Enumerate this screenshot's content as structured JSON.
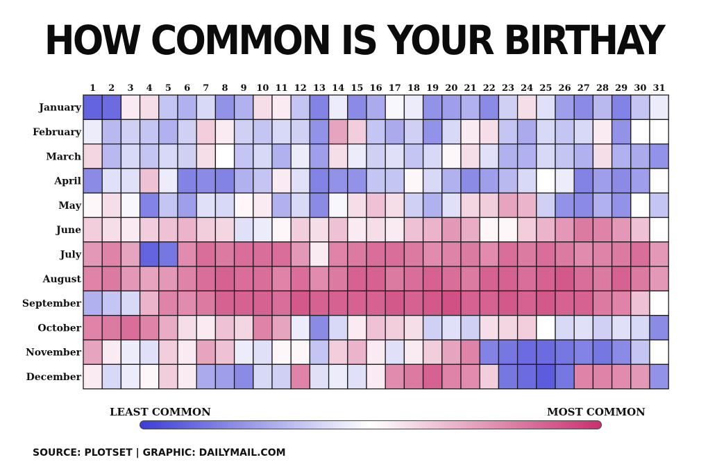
{
  "title": "HOW COMMON IS YOUR BIRTHAY",
  "legend": {
    "low_label": "LEAST COMMON",
    "high_label": "MOST COMMON",
    "colors": [
      "#3d3dd6",
      "#ffffff",
      "#c9306e"
    ]
  },
  "source": "SOURCE: PLOTSET | GRAPHIC: DAILYMAIL.COM",
  "chart_data": {
    "type": "heatmap",
    "scale": "relative birthday frequency, 0 = least common, 1 = most common",
    "x_labels": [
      "1",
      "2",
      "3",
      "4",
      "5",
      "6",
      "7",
      "8",
      "9",
      "10",
      "11",
      "12",
      "13",
      "14",
      "15",
      "16",
      "17",
      "18",
      "19",
      "20",
      "21",
      "22",
      "23",
      "24",
      "25",
      "26",
      "27",
      "28",
      "29",
      "30",
      "31"
    ],
    "y_labels": [
      "January",
      "February",
      "March",
      "April",
      "May",
      "June",
      "July",
      "August",
      "September",
      "October",
      "November",
      "December"
    ],
    "values": [
      [
        0.1,
        0.12,
        0.55,
        0.58,
        0.35,
        0.3,
        0.4,
        0.22,
        0.3,
        0.58,
        0.55,
        0.35,
        0.18,
        0.45,
        0.2,
        0.28,
        0.48,
        0.45,
        0.22,
        0.25,
        0.3,
        0.2,
        0.38,
        0.58,
        0.42,
        0.25,
        0.2,
        0.32,
        0.18,
        0.35,
        0.45
      ],
      [
        0.45,
        0.32,
        0.38,
        0.35,
        0.3,
        0.38,
        0.62,
        0.55,
        0.38,
        0.35,
        0.4,
        0.38,
        0.22,
        0.72,
        0.62,
        0.35,
        0.28,
        0.38,
        0.22,
        0.4,
        0.55,
        0.58,
        0.35,
        0.28,
        0.4,
        0.35,
        0.4,
        0.55,
        0.22,
        0.5,
        0.5
      ],
      [
        0.6,
        0.32,
        0.4,
        0.35,
        0.4,
        0.38,
        0.58,
        0.5,
        0.35,
        0.4,
        0.3,
        0.45,
        0.25,
        0.58,
        0.45,
        0.38,
        0.42,
        0.35,
        0.4,
        0.52,
        0.58,
        0.42,
        0.3,
        0.3,
        0.4,
        0.35,
        0.3,
        0.58,
        0.3,
        0.28,
        0.22
      ],
      [
        0.2,
        0.42,
        0.42,
        0.65,
        0.45,
        0.18,
        0.2,
        0.18,
        0.3,
        0.35,
        0.55,
        0.42,
        0.18,
        0.22,
        0.22,
        0.35,
        0.35,
        0.52,
        0.4,
        0.3,
        0.2,
        0.25,
        0.32,
        0.4,
        0.5,
        0.45,
        0.18,
        0.25,
        0.2,
        0.25,
        0.5
      ],
      [
        0.52,
        0.58,
        0.48,
        0.18,
        0.35,
        0.25,
        0.42,
        0.4,
        0.52,
        0.55,
        0.3,
        0.4,
        0.2,
        0.48,
        0.58,
        0.65,
        0.58,
        0.38,
        0.3,
        0.42,
        0.6,
        0.62,
        0.72,
        0.68,
        0.38,
        0.22,
        0.2,
        0.3,
        0.22,
        0.5,
        0.35
      ],
      [
        0.62,
        0.58,
        0.55,
        0.62,
        0.65,
        0.68,
        0.62,
        0.6,
        0.42,
        0.45,
        0.52,
        0.62,
        0.58,
        0.65,
        0.55,
        0.58,
        0.55,
        0.65,
        0.68,
        0.75,
        0.7,
        0.52,
        0.52,
        0.62,
        0.68,
        0.75,
        0.82,
        0.8,
        0.75,
        0.65,
        0.5
      ],
      [
        0.75,
        0.8,
        0.72,
        0.1,
        0.15,
        0.78,
        0.85,
        0.82,
        0.85,
        0.85,
        0.85,
        0.75,
        0.55,
        0.8,
        0.82,
        0.85,
        0.85,
        0.82,
        0.78,
        0.8,
        0.82,
        0.78,
        0.85,
        0.82,
        0.85,
        0.82,
        0.78,
        0.8,
        0.82,
        0.85,
        0.75
      ],
      [
        0.8,
        0.82,
        0.75,
        0.72,
        0.75,
        0.8,
        0.85,
        0.88,
        0.85,
        0.85,
        0.8,
        0.85,
        0.78,
        0.82,
        0.88,
        0.88,
        0.82,
        0.85,
        0.88,
        0.85,
        0.82,
        0.88,
        0.88,
        0.85,
        0.88,
        0.9,
        0.85,
        0.82,
        0.88,
        0.82,
        0.75
      ],
      [
        0.3,
        0.35,
        0.4,
        0.68,
        0.8,
        0.78,
        0.82,
        0.88,
        0.88,
        0.88,
        0.85,
        0.9,
        0.88,
        0.88,
        0.88,
        0.88,
        0.9,
        0.88,
        0.9,
        0.92,
        0.88,
        0.88,
        0.9,
        0.88,
        0.9,
        0.88,
        0.88,
        0.82,
        0.8,
        0.65,
        0.5
      ],
      [
        0.8,
        0.82,
        0.85,
        0.8,
        0.7,
        0.58,
        0.55,
        0.65,
        0.6,
        0.8,
        0.72,
        0.45,
        0.2,
        0.4,
        0.55,
        0.65,
        0.62,
        0.58,
        0.38,
        0.42,
        0.38,
        0.58,
        0.6,
        0.62,
        0.5,
        0.4,
        0.42,
        0.38,
        0.42,
        0.4,
        0.2
      ],
      [
        0.72,
        0.55,
        0.45,
        0.42,
        0.62,
        0.55,
        0.72,
        0.65,
        0.45,
        0.42,
        0.52,
        0.52,
        0.35,
        0.62,
        0.68,
        0.55,
        0.42,
        0.55,
        0.62,
        0.72,
        0.8,
        0.18,
        0.15,
        0.12,
        0.12,
        0.15,
        0.18,
        0.15,
        0.2,
        0.35,
        0.5
      ],
      [
        0.55,
        0.4,
        0.45,
        0.52,
        0.62,
        0.55,
        0.28,
        0.25,
        0.2,
        0.4,
        0.38,
        0.8,
        0.42,
        0.45,
        0.42,
        0.55,
        0.78,
        0.82,
        0.88,
        0.8,
        0.78,
        0.62,
        0.15,
        0.12,
        0.08,
        0.15,
        0.8,
        0.8,
        0.78,
        0.75,
        0.22
      ]
    ]
  }
}
